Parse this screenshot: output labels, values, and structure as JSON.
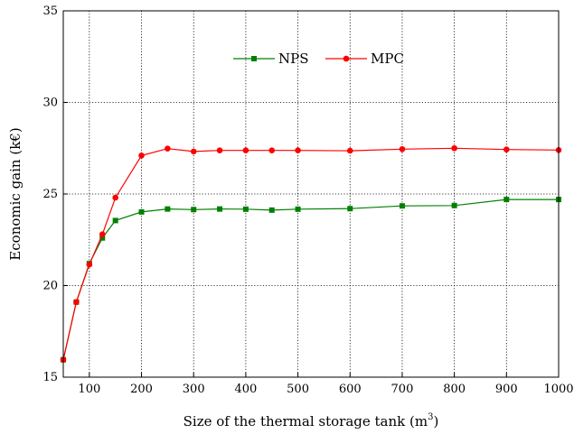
{
  "chart_data": {
    "type": "line",
    "xlabel": "Size of the thermal storage tank (m",
    "xlabel_superscript": "3",
    "xlabel_suffix": ")",
    "ylabel": "Economic gain (k€)",
    "xlim": [
      50,
      1000
    ],
    "ylim": [
      15,
      35
    ],
    "x_ticks": [
      100,
      200,
      300,
      400,
      500,
      600,
      700,
      800,
      900,
      1000
    ],
    "y_ticks": [
      15,
      20,
      25,
      30,
      35
    ],
    "grid": true,
    "legend_position": "top-center",
    "series": [
      {
        "name": "NPS",
        "color": "#008000",
        "marker": "square",
        "x": [
          50,
          75,
          100,
          125,
          150,
          200,
          250,
          300,
          350,
          400,
          450,
          500,
          600,
          700,
          800,
          900,
          1000
        ],
        "values": [
          15.95,
          19.1,
          21.2,
          22.6,
          23.55,
          24.02,
          24.18,
          24.15,
          24.18,
          24.17,
          24.12,
          24.17,
          24.2,
          24.35,
          24.37,
          24.7,
          24.7
        ]
      },
      {
        "name": "MPC",
        "color": "#ff0000",
        "marker": "circle",
        "x": [
          50,
          75,
          100,
          125,
          150,
          200,
          250,
          300,
          350,
          400,
          450,
          500,
          600,
          700,
          800,
          900,
          1000
        ],
        "values": [
          15.95,
          19.1,
          21.15,
          22.8,
          24.8,
          27.1,
          27.48,
          27.32,
          27.38,
          27.38,
          27.38,
          27.38,
          27.36,
          27.45,
          27.5,
          27.43,
          27.4
        ]
      }
    ]
  }
}
